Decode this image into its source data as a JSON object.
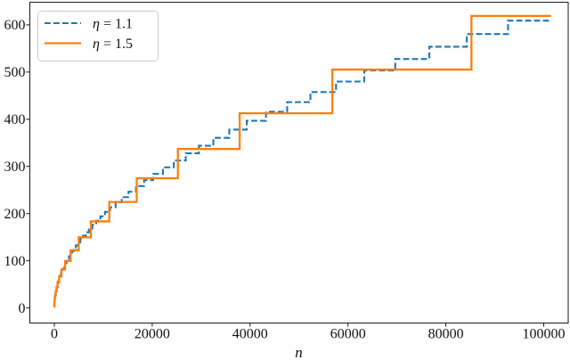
{
  "figure": {
    "background": "#ffffff",
    "axis_color": "#1a1a1a",
    "legend_border_color": "#cccccc",
    "legend_fill": "#ffffff"
  },
  "chart_data": {
    "type": "line",
    "subtype": "step-post",
    "title": "",
    "xlabel": "n",
    "ylabel": "",
    "grid": false,
    "legend_position": "upper-left",
    "xlim": [
      -5000,
      105000
    ],
    "ylim": [
      -32,
      648
    ],
    "x_ticks": [
      0,
      20000,
      40000,
      60000,
      80000,
      100000
    ],
    "x_tick_labels": [
      "0",
      "20000",
      "40000",
      "60000",
      "80000",
      "100000"
    ],
    "y_ticks": [
      0,
      100,
      200,
      300,
      400,
      500,
      600
    ],
    "y_tick_labels": [
      "0",
      "100",
      "200",
      "300",
      "400",
      "500",
      "600"
    ],
    "x_end": 101500,
    "series": [
      {
        "name": "η = 1.1",
        "eta": 1.1,
        "color": "#1f77b4",
        "line_style": "dashed",
        "steps": [
          [
            1,
            2
          ],
          [
            1.61,
            2.5
          ],
          [
            2.59,
            3.2
          ],
          [
            4.18,
            4.1
          ],
          [
            6.73,
            5.2
          ],
          [
            10.8,
            6.6
          ],
          [
            17.4,
            8.4
          ],
          [
            28.1,
            10.6
          ],
          [
            45.3,
            13.5
          ],
          [
            72.9,
            17.1
          ],
          [
            117,
            21.7
          ],
          [
            189,
            27.5
          ],
          [
            304,
            34.9
          ],
          [
            490,
            44.3
          ],
          [
            790,
            56.2
          ],
          [
            956,
            61.8
          ],
          [
            1156,
            68
          ],
          [
            1399,
            74.8
          ],
          [
            1693,
            82.3
          ],
          [
            2048,
            90.5
          ],
          [
            2253,
            94.9
          ],
          [
            2479,
            99.6
          ],
          [
            2726,
            104.4
          ],
          [
            2999,
            109.5
          ],
          [
            3299,
            114.9
          ],
          [
            3629,
            120.5
          ],
          [
            3992,
            126.4
          ],
          [
            4391,
            132.5
          ],
          [
            4830,
            139
          ],
          [
            5313,
            145.8
          ],
          [
            5844,
            152.9
          ],
          [
            6429,
            160.4
          ],
          [
            7072,
            168.2
          ],
          [
            7779,
            176.4
          ],
          [
            8557,
            185
          ],
          [
            9412,
            194
          ],
          [
            10354,
            203.5
          ],
          [
            11389,
            213.4
          ],
          [
            12528,
            223.9
          ],
          [
            13781,
            234.8
          ],
          [
            15159,
            246.2
          ],
          [
            16675,
            258.3
          ],
          [
            18342,
            270.9
          ],
          [
            20176,
            284.1
          ],
          [
            22194,
            297.9
          ],
          [
            24413,
            312.5
          ],
          [
            26855,
            327.7
          ],
          [
            29540,
            343.8
          ],
          [
            32494,
            360.5
          ],
          [
            35743,
            378.1
          ],
          [
            39318,
            396.6
          ],
          [
            43250,
            415.9
          ],
          [
            47574,
            436.2
          ],
          [
            52332,
            457.5
          ],
          [
            57565,
            479.9
          ],
          [
            63322,
            503.3
          ],
          [
            69654,
            527.8
          ],
          [
            76619,
            553.6
          ],
          [
            84281,
            580.6
          ],
          [
            92709,
            609
          ]
        ]
      },
      {
        "name": "η = 1.5",
        "eta": 1.5,
        "color": "#ff7f0e",
        "line_style": "solid",
        "steps": [
          [
            1,
            2.1
          ],
          [
            1.5,
            2.6
          ],
          [
            2.25,
            3.2
          ],
          [
            3.38,
            3.9
          ],
          [
            5.06,
            4.8
          ],
          [
            7.59,
            5.8
          ],
          [
            11.4,
            7.2
          ],
          [
            17.1,
            8.8
          ],
          [
            25.6,
            10.7
          ],
          [
            38.4,
            13.1
          ],
          [
            57.7,
            16.1
          ],
          [
            86.5,
            19.7
          ],
          [
            130,
            24.2
          ],
          [
            195,
            29.6
          ],
          [
            292,
            36.2
          ],
          [
            438,
            44.4
          ],
          [
            657,
            54.3
          ],
          [
            985,
            66.5
          ],
          [
            1478,
            81.5
          ],
          [
            2217,
            99.8
          ],
          [
            3325,
            122.3
          ],
          [
            4988,
            149.7
          ],
          [
            7482,
            183.4
          ],
          [
            11223,
            224.6
          ],
          [
            16834,
            275
          ],
          [
            25251,
            336.9
          ],
          [
            37877,
            412.6
          ],
          [
            56815,
            505.3
          ],
          [
            85223,
            618.9
          ]
        ]
      }
    ]
  }
}
